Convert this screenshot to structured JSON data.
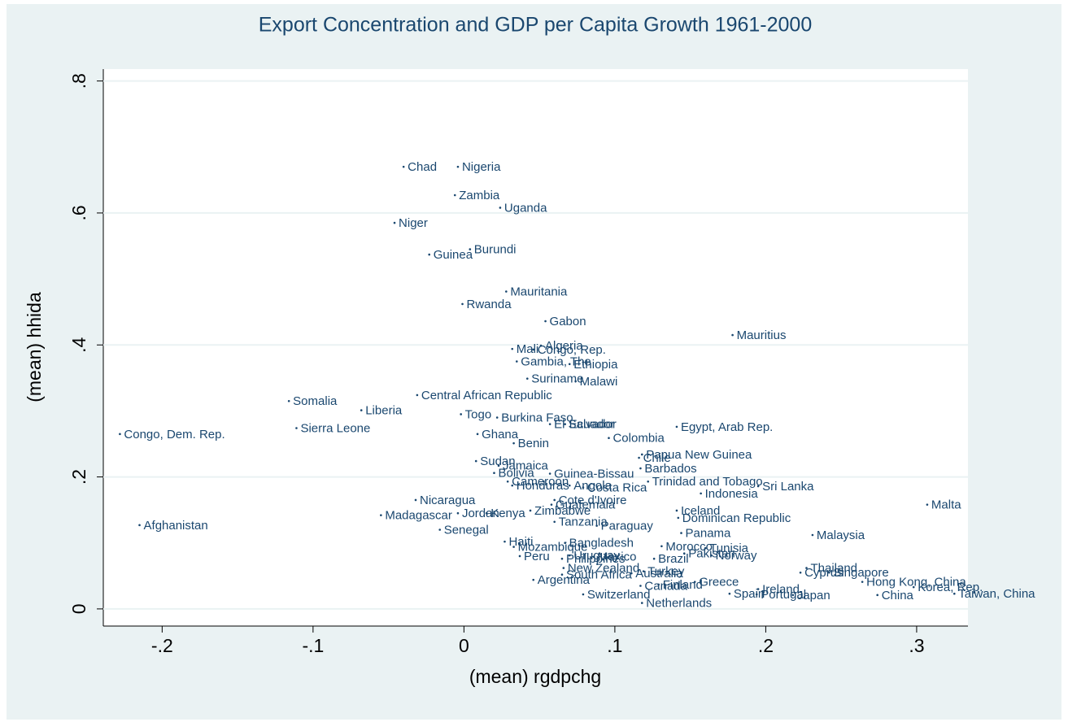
{
  "chart_data": {
    "type": "scatter",
    "title": "Export Concentration and GDP per Capita Growth 1961-2000",
    "xlabel": "(mean) rgdpchg",
    "ylabel": "(mean) hhida",
    "xlim": [
      -0.239,
      0.334
    ],
    "ylim": [
      -0.026,
      0.818
    ],
    "xticks": [
      {
        "value": -0.2,
        "label": "-.2"
      },
      {
        "value": -0.1,
        "label": "-.1"
      },
      0,
      {
        "value": 0.1,
        "label": ".1"
      },
      {
        "value": 0.2,
        "label": ".2"
      },
      {
        "value": 0.3,
        "label": ".3"
      }
    ],
    "yticks": [
      0,
      {
        "value": 0.2,
        "label": ".2"
      },
      {
        "value": 0.4,
        "label": ".4"
      },
      {
        "value": 0.6,
        "label": ".6"
      },
      {
        "value": 0.8,
        "label": ".8"
      }
    ],
    "grid": true,
    "color": "#1a476f",
    "labels": [
      "Chad",
      "Nigeria",
      "Zambia",
      "Uganda",
      "Niger",
      "Burundi",
      "Guinea",
      "Mauritania",
      "Rwanda",
      "Gabon",
      "Mauritius",
      "Algeria",
      "Mali",
      "Congo, Rep.",
      "Gambia, The",
      "Ethiopia",
      "Suriname",
      "Malawi",
      "Central African Republic",
      "Somalia",
      "Liberia",
      "Togo",
      "Burkina Faso",
      "El Salvador",
      "Ecuador",
      "Egypt, Arab Rep.",
      "Sierra Leone",
      "Congo, Dem. Rep.",
      "Ghana",
      "Colombia",
      "Benin",
      "Papua New Guinea",
      "Chile",
      "Sudan",
      "Jamaica",
      "Bolivia",
      "Guinea-Bissau",
      "Barbados",
      "Cameroon",
      "Honduras",
      "Angola",
      "Costa Rica",
      "Trinidad and Tobago",
      "Sri Lanka",
      "Indonesia",
      "Malta",
      "Nicaragua",
      "Cote d'Ivoire",
      "Guatemala",
      "Iceland",
      "Zimbabwe",
      "Jordan",
      "Kenya",
      "Madagascar",
      "Dominican Republic",
      "Afghanistan",
      "Tanzania",
      "Paraguay",
      "Senegal",
      "Panama",
      "Malaysia",
      "Haiti",
      "Bangladesh",
      "Morocco",
      "Tunisia",
      "Mozambique",
      "Peru",
      "Uruguay",
      "Mexico",
      "Brazil",
      "Pakistan",
      "Norway",
      "Philippines",
      "Thailand",
      "Cyprus",
      "Singapore",
      "New Zealand",
      "South Africa",
      "Australia",
      "Turkey",
      "Argentina",
      "Hong Kong, China",
      "Greece",
      "Canada",
      "Finland",
      "Korea, Rep.",
      "Taiwan, China",
      "Ireland",
      "Spain",
      "Portugal",
      "Japan",
      "China",
      "Switzerland",
      "Netherlands"
    ],
    "x": [
      -0.04,
      -0.004,
      -0.006,
      0.024,
      -0.046,
      0.004,
      -0.023,
      0.028,
      -0.001,
      0.054,
      0.178,
      0.051,
      0.032,
      0.046,
      0.035,
      0.07,
      0.042,
      0.074,
      -0.031,
      -0.116,
      -0.068,
      -0.002,
      0.022,
      0.057,
      0.067,
      0.141,
      -0.111,
      -0.228,
      0.009,
      0.096,
      0.033,
      0.118,
      0.116,
      0.008,
      0.023,
      0.02,
      0.057,
      0.117,
      0.029,
      0.032,
      0.07,
      0.079,
      0.122,
      0.195,
      0.157,
      0.307,
      -0.032,
      0.06,
      0.058,
      0.141,
      0.044,
      -0.004,
      0.015,
      -0.055,
      0.142,
      -0.215,
      0.06,
      0.088,
      -0.016,
      0.144,
      0.231,
      0.027,
      0.067,
      0.131,
      0.16,
      0.033,
      0.037,
      0.07,
      0.086,
      0.126,
      0.146,
      0.164,
      0.065,
      0.227,
      0.223,
      0.242,
      0.066,
      0.065,
      0.111,
      0.119,
      0.046,
      0.264,
      0.153,
      0.117,
      0.129,
      0.298,
      0.325,
      0.195,
      0.176,
      0.194,
      0.218,
      0.274,
      0.079,
      0.118
    ],
    "values": [
      0.67,
      0.67,
      0.627,
      0.608,
      0.585,
      0.545,
      0.537,
      0.481,
      0.462,
      0.436,
      0.415,
      0.399,
      0.394,
      0.393,
      0.375,
      0.371,
      0.349,
      0.345,
      0.324,
      0.315,
      0.301,
      0.295,
      0.29,
      0.28,
      0.28,
      0.276,
      0.274,
      0.265,
      0.265,
      0.259,
      0.251,
      0.234,
      0.229,
      0.224,
      0.217,
      0.206,
      0.205,
      0.213,
      0.193,
      0.187,
      0.187,
      0.184,
      0.193,
      0.186,
      0.175,
      0.158,
      0.165,
      0.165,
      0.158,
      0.149,
      0.149,
      0.145,
      0.145,
      0.142,
      0.138,
      0.127,
      0.132,
      0.126,
      0.12,
      0.115,
      0.112,
      0.102,
      0.1,
      0.095,
      0.092,
      0.094,
      0.08,
      0.081,
      0.079,
      0.076,
      0.084,
      0.081,
      0.076,
      0.062,
      0.055,
      0.055,
      0.062,
      0.052,
      0.054,
      0.057,
      0.044,
      0.041,
      0.041,
      0.035,
      0.037,
      0.033,
      0.023,
      0.03,
      0.023,
      0.022,
      0.021,
      0.021,
      0.022,
      0.009
    ]
  }
}
